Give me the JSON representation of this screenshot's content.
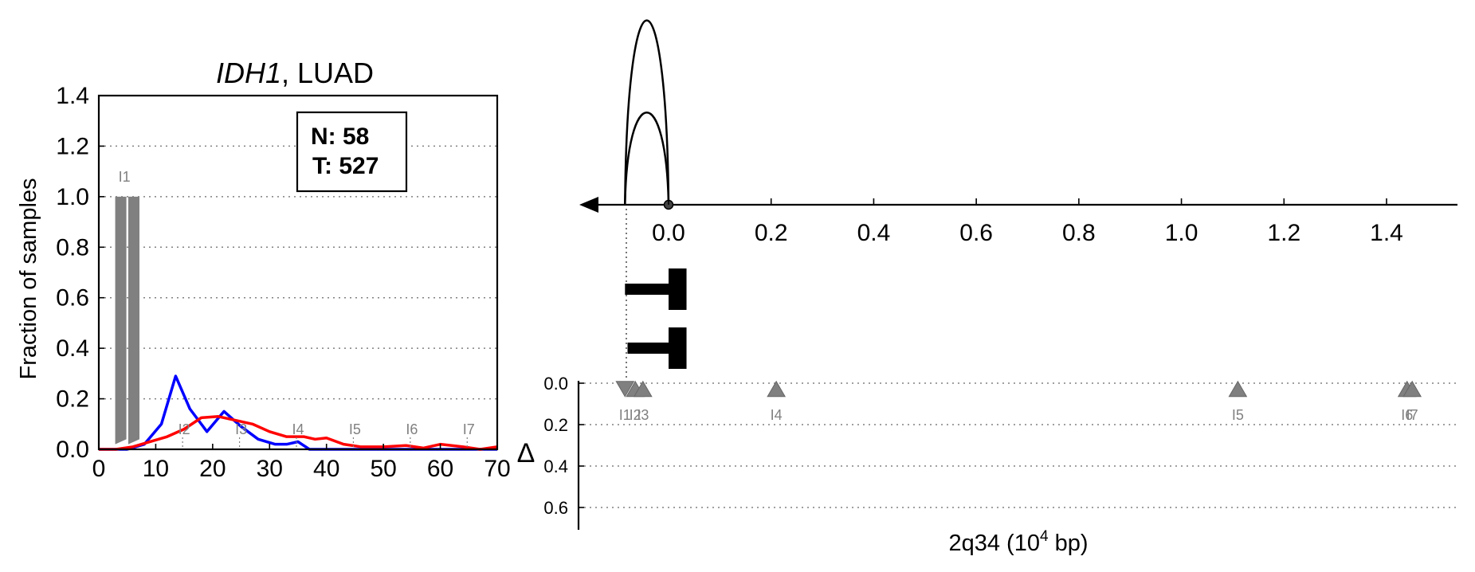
{
  "chart_data": [
    {
      "type": "line",
      "title_gene": "IDH1",
      "title_rest": ", LUAD",
      "xlabel": "",
      "ylabel": "Fraction of samples",
      "xlim": [
        0,
        70
      ],
      "ylim": [
        0,
        1.4
      ],
      "xticks": [
        "0",
        "10",
        "20",
        "30",
        "40",
        "50",
        "60",
        "70"
      ],
      "yticks": [
        "0.0",
        "0.2",
        "0.4",
        "0.6",
        "0.8",
        "1.0",
        "1.2",
        "1.4"
      ],
      "grid": "horizontal dotted",
      "legend_lines": [
        "N: 58",
        "T: 527"
      ],
      "legend_position": "top-right",
      "colors": {
        "normal": "#0000ff",
        "tumor": "#ff0000",
        "marker": "#808080",
        "axis": "#000000"
      },
      "bars": [
        {
          "x": 4,
          "value": 1.0
        },
        {
          "x": 6.3,
          "value": 1.0
        }
      ],
      "series": [
        {
          "name": "N: 58",
          "x": [
            0,
            5,
            8,
            11,
            13.5,
            16,
            19,
            22,
            25,
            28,
            31,
            33,
            35,
            37,
            40,
            45,
            50,
            55,
            60,
            65,
            70
          ],
          "values": [
            0,
            0,
            0.02,
            0.1,
            0.29,
            0.16,
            0.07,
            0.15,
            0.09,
            0.04,
            0.02,
            0.02,
            0.03,
            0,
            0,
            0,
            0,
            0,
            0,
            0,
            0
          ]
        },
        {
          "name": "T: 527",
          "x": [
            0,
            3,
            6,
            9,
            12,
            15,
            18,
            21,
            24,
            27,
            30,
            33,
            36,
            38,
            40,
            43,
            46,
            50,
            54,
            57,
            60,
            64,
            67,
            70
          ],
          "values": [
            0,
            0,
            0.01,
            0.03,
            0.05,
            0.08,
            0.125,
            0.13,
            0.115,
            0.1,
            0.07,
            0.05,
            0.05,
            0.04,
            0.045,
            0.02,
            0.01,
            0.01,
            0.015,
            0.005,
            0.02,
            0.01,
            0,
            0.01
          ]
        }
      ],
      "markers": [
        {
          "label": "I1",
          "x": 4.5,
          "y": 1.06
        },
        {
          "label": "I2",
          "x": 15,
          "y": 0.06
        },
        {
          "label": "I3",
          "x": 25,
          "y": 0.06
        },
        {
          "label": "I4",
          "x": 35,
          "y": 0.06
        },
        {
          "label": "I5",
          "x": 45,
          "y": 0.06
        },
        {
          "label": "I6",
          "x": 55,
          "y": 0.06
        },
        {
          "label": "I7",
          "x": 65,
          "y": 0.06
        }
      ]
    },
    {
      "type": "scatter",
      "xlabel_prefix": "2q34 (10",
      "xlabel_sup": "4",
      "xlabel_suffix": " bp)",
      "ylabel": "Δ",
      "top_xlim": [
        -0.19,
        1.55
      ],
      "top_xticks": [
        "0.0",
        "0.2",
        "0.4",
        "0.6",
        "0.8",
        "1.0",
        "1.2",
        "1.4"
      ],
      "ylim": [
        0,
        0.7
      ],
      "yticks": [
        "0.0",
        "0.2",
        "0.4",
        "0.6"
      ],
      "grid": "horizontal dotted",
      "arcs": [
        {
          "from": -0.085,
          "to": 0.0,
          "height": 1.0
        },
        {
          "from": -0.085,
          "to": 0.0,
          "height": 0.5
        }
      ],
      "gene_models": [
        {
          "start": -0.085,
          "end": 0.035
        },
        {
          "start": -0.08,
          "end": 0.035
        }
      ],
      "points": [
        {
          "label": "I1",
          "x": -0.085,
          "y": 0.03,
          "shape": "down"
        },
        {
          "label": "I2",
          "x": -0.065,
          "y": 0.03,
          "shape": "up"
        },
        {
          "label": "I3",
          "x": -0.05,
          "y": 0.03,
          "shape": "up"
        },
        {
          "label": "I4",
          "x": 0.21,
          "y": 0.03,
          "shape": "up"
        },
        {
          "label": "I5",
          "x": 1.11,
          "y": 0.03,
          "shape": "up"
        },
        {
          "label": "I6",
          "x": 1.44,
          "y": 0.03,
          "shape": "up"
        },
        {
          "label": "I7",
          "x": 1.45,
          "y": 0.03,
          "shape": "up"
        }
      ]
    }
  ]
}
